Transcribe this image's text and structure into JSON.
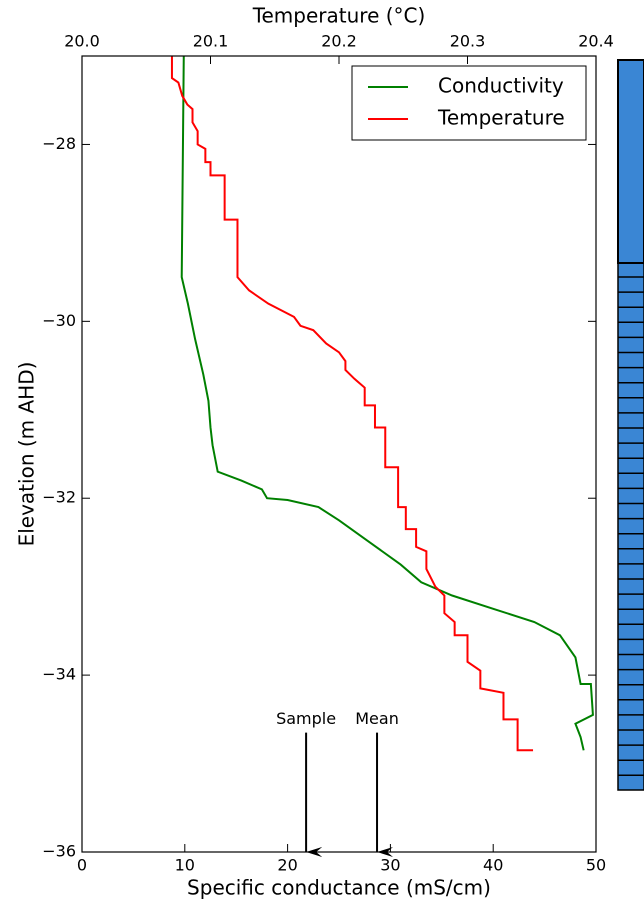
{
  "chart_data": {
    "type": "line",
    "xlabel": "Specific conductance (mS/cm)",
    "x2label": "Temperature (°C)",
    "ylabel": "Elevation (m AHD)",
    "xlim": [
      0,
      50
    ],
    "xticks": [
      0,
      10,
      20,
      30,
      40,
      50
    ],
    "x2lim": [
      20.0,
      20.4
    ],
    "x2ticks": [
      {
        "value": 20.0,
        "label": "20.0"
      },
      20.1,
      20.2,
      20.3,
      {
        "value": 20.4,
        "label": "20.4"
      }
    ],
    "ylim": [
      -36,
      -27
    ],
    "yticks": [
      {
        "value": -36,
        "label": "−36"
      },
      {
        "value": -34,
        "label": "−34"
      },
      {
        "value": -32,
        "label": "−32"
      },
      {
        "value": -30,
        "label": "−30"
      },
      {
        "value": -28,
        "label": "−28"
      }
    ],
    "legend": "upper right",
    "series": [
      {
        "name": "Conductivity",
        "color": "#008000",
        "axis": "x",
        "x": [
          9.9,
          9.7,
          10.3,
          11.0,
          11.8,
          12.3,
          12.5,
          12.7,
          13.2,
          15.5,
          17.5,
          18.0,
          20.0,
          23.0,
          25.0,
          28.0,
          31.0,
          33.0,
          36.0,
          40.0,
          44.0,
          46.5,
          48.0,
          48.5,
          49.5,
          49.7,
          48.0,
          48.5,
          48.8
        ],
        "y": [
          -27.0,
          -29.5,
          -29.8,
          -30.2,
          -30.6,
          -30.9,
          -31.2,
          -31.4,
          -31.7,
          -31.8,
          -31.9,
          -32.0,
          -32.02,
          -32.1,
          -32.25,
          -32.5,
          -32.75,
          -32.95,
          -33.1,
          -33.25,
          -33.4,
          -33.55,
          -33.8,
          -34.1,
          -34.1,
          -34.45,
          -34.55,
          -34.7,
          -34.85
        ]
      },
      {
        "name": "Temperature",
        "color": "#ff0000",
        "axis": "x2",
        "x": [
          20.07,
          20.07,
          20.075,
          20.078,
          20.082,
          20.086,
          20.086,
          20.09,
          20.09,
          20.096,
          20.096,
          20.1,
          20.1,
          20.111,
          20.111,
          20.121,
          20.121,
          20.13,
          20.145,
          20.165,
          20.17,
          20.18,
          20.19,
          20.2,
          20.205,
          20.205,
          20.212,
          20.22,
          20.22,
          20.228,
          20.228,
          20.236,
          20.236,
          20.246,
          20.246,
          20.252,
          20.252,
          20.26,
          20.26,
          20.268,
          20.268,
          20.275,
          20.282,
          20.282,
          20.29,
          20.29,
          20.3,
          20.3,
          20.31,
          20.31,
          20.328,
          20.328,
          20.339,
          20.339,
          20.351
        ],
        "y": [
          -27.0,
          -27.25,
          -27.3,
          -27.45,
          -27.55,
          -27.6,
          -27.75,
          -27.85,
          -28.0,
          -28.05,
          -28.2,
          -28.2,
          -28.35,
          -28.35,
          -28.85,
          -28.85,
          -29.5,
          -29.65,
          -29.8,
          -29.95,
          -30.05,
          -30.1,
          -30.25,
          -30.35,
          -30.45,
          -30.55,
          -30.65,
          -30.75,
          -30.95,
          -30.95,
          -31.2,
          -31.2,
          -31.65,
          -31.65,
          -32.1,
          -32.1,
          -32.35,
          -32.35,
          -32.55,
          -32.6,
          -32.8,
          -33.0,
          -33.1,
          -33.3,
          -33.4,
          -33.55,
          -33.55,
          -33.85,
          -33.95,
          -34.15,
          -34.2,
          -34.5,
          -34.5,
          -34.85,
          -34.85
        ]
      }
    ],
    "annotations": [
      {
        "text": "Sample",
        "x": 21.8,
        "y_text": -34.5,
        "y_start": -34.65,
        "y_end": -36
      },
      {
        "text": "Mean",
        "x": 28.7,
        "y_text": -34.5,
        "y_start": -34.65,
        "y_end": -36
      }
    ]
  }
}
